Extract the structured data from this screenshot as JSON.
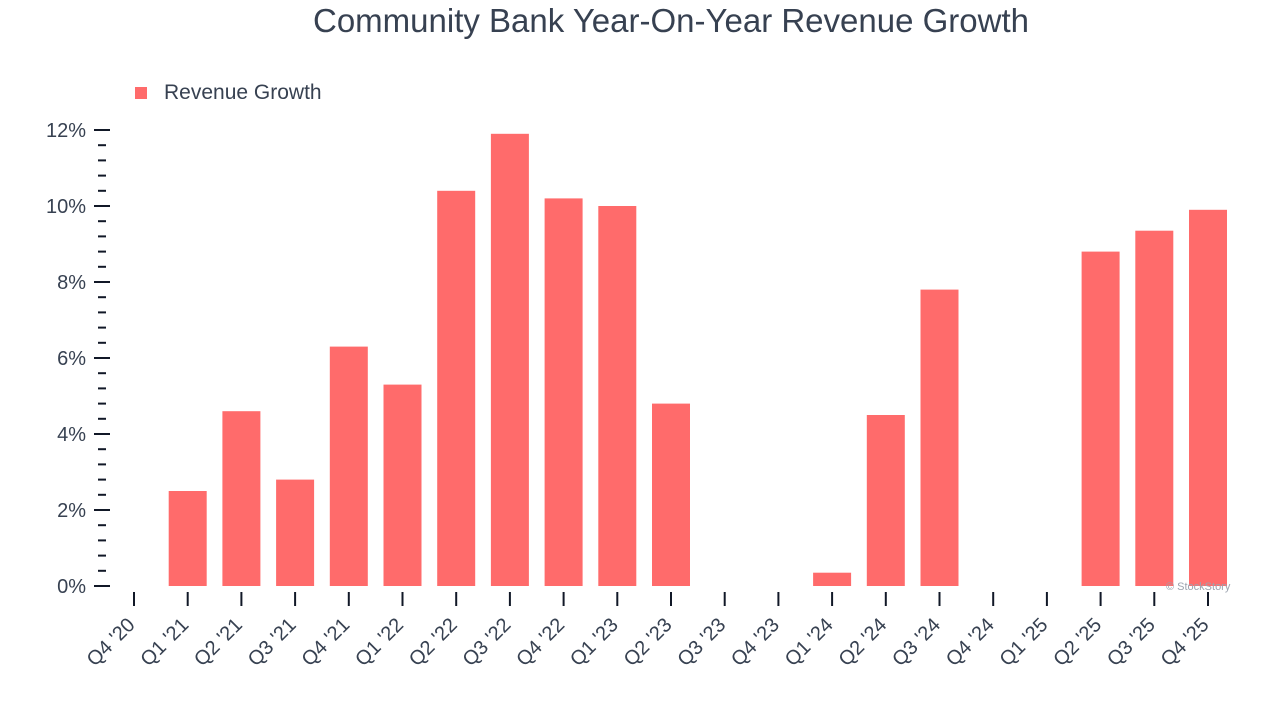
{
  "chart_data": {
    "type": "bar",
    "title": "Community Bank Year-On-Year Revenue Growth",
    "xlabel": "",
    "ylabel": "",
    "categories": [
      "Q4 '20",
      "Q1 '21",
      "Q2 '21",
      "Q3 '21",
      "Q4 '21",
      "Q1 '22",
      "Q2 '22",
      "Q3 '22",
      "Q4 '22",
      "Q1 '23",
      "Q2 '23",
      "Q3 '23",
      "Q4 '23",
      "Q1 '24",
      "Q2 '24",
      "Q3 '24",
      "Q4 '24",
      "Q1 '25",
      "Q2 '25",
      "Q3 '25",
      "Q4 '25"
    ],
    "series": [
      {
        "name": "Revenue Growth",
        "color": "#ff6b6b",
        "values": [
          0,
          2.5,
          4.6,
          2.8,
          6.3,
          5.3,
          10.4,
          11.9,
          10.2,
          10.0,
          4.8,
          0,
          0,
          0.35,
          4.5,
          7.8,
          0,
          0,
          8.8,
          9.35,
          9.9
        ]
      }
    ],
    "ylim": [
      0,
      12
    ],
    "yticks": [
      0,
      2,
      4,
      6,
      8,
      10,
      12
    ],
    "ytick_labels": [
      "0%",
      "2%",
      "4%",
      "6%",
      "8%",
      "10%",
      "12%"
    ],
    "grid": false,
    "legend": {
      "position": "top-left"
    }
  },
  "watermark": "© StockStory"
}
